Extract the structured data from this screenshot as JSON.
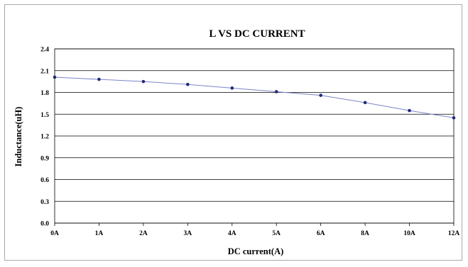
{
  "chart_data": {
    "type": "line",
    "title": "L VS DC CURRENT",
    "xlabel": "DC current(A)",
    "ylabel": "Inductance(uH)",
    "categories": [
      "0A",
      "1A",
      "2A",
      "3A",
      "4A",
      "5A",
      "6A",
      "8A",
      "10A",
      "12A"
    ],
    "series": [
      {
        "values": [
          2.01,
          1.98,
          1.95,
          1.91,
          1.86,
          1.81,
          1.76,
          1.66,
          1.55,
          1.45
        ]
      }
    ],
    "ylim": [
      0.0,
      2.4
    ],
    "yticks": [
      "0.0",
      "0.3",
      "0.6",
      "0.9",
      "1.2",
      "1.5",
      "1.8",
      "2.1",
      "2.4"
    ],
    "grid": true,
    "legend": "none",
    "colors": {
      "line": "#7b83c9",
      "marker": "#1f2a78",
      "grid": "#000000",
      "frame": "#a9a9a9"
    }
  }
}
